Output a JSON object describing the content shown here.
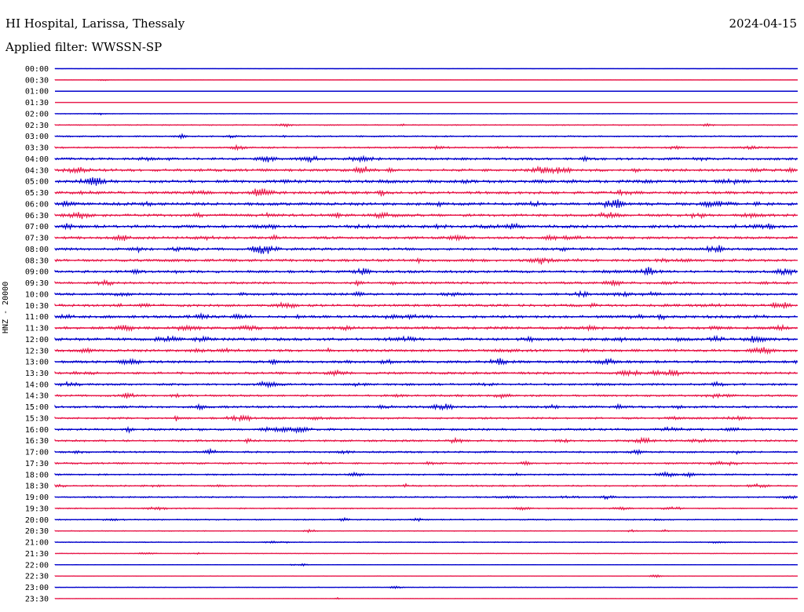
{
  "header": {
    "station": "HI Hospital, Larissa, Thessaly",
    "date": "2024-04-15",
    "filter": "Applied filter: WWSSN-SP"
  },
  "channel_label": "HNZ - 20000",
  "colors": {
    "blue": "#0000cc",
    "red": "#e8194a"
  },
  "chart_data": {
    "type": "line",
    "title": "",
    "ylabel": "HNZ - 20000",
    "x_axis": "minutes within each 30-minute row",
    "row_labels": [
      "00:00",
      "00:30",
      "01:00",
      "01:30",
      "02:00",
      "02:30",
      "03:00",
      "03:30",
      "04:00",
      "04:30",
      "05:00",
      "05:30",
      "06:00",
      "06:30",
      "07:00",
      "07:30",
      "08:00",
      "08:30",
      "09:00",
      "09:30",
      "10:00",
      "10:30",
      "11:00",
      "11:30",
      "12:00",
      "12:30",
      "13:00",
      "13:30",
      "14:00",
      "14:30",
      "15:00",
      "15:30",
      "16:00",
      "16:30",
      "17:00",
      "17:30",
      "18:00",
      "18:30",
      "19:00",
      "19:30",
      "20:00",
      "20:30",
      "21:00",
      "21:30",
      "22:00",
      "22:30",
      "23:00",
      "23:30"
    ],
    "row_colors": [
      "blue",
      "red"
    ],
    "activity": [
      0.05,
      0.12,
      0.06,
      0.0,
      0.15,
      0.3,
      0.4,
      0.45,
      0.65,
      0.75,
      0.8,
      0.75,
      0.8,
      0.75,
      0.8,
      0.75,
      0.7,
      0.7,
      0.7,
      0.65,
      0.65,
      0.7,
      0.75,
      0.75,
      0.75,
      0.7,
      0.7,
      0.65,
      0.6,
      0.55,
      0.6,
      0.55,
      0.6,
      0.55,
      0.5,
      0.5,
      0.45,
      0.45,
      0.4,
      0.35,
      0.35,
      0.25,
      0.25,
      0.2,
      0.15,
      0.15,
      0.15,
      0.1
    ],
    "grid": false
  }
}
